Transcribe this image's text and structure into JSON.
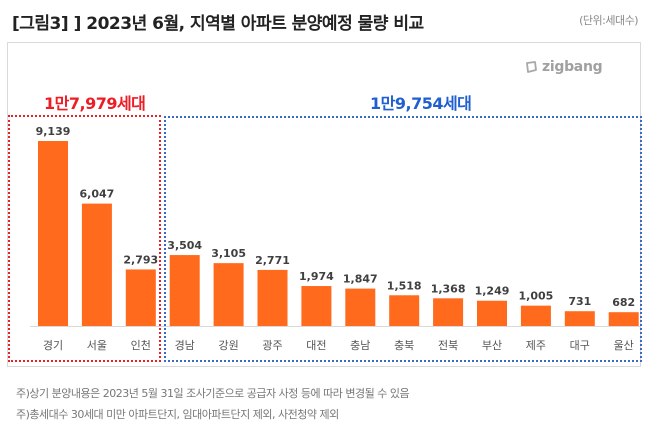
{
  "header": {
    "title": "[그림3] ] 2023년 6월, 지역별 아파트 분양예정 물량 비교",
    "unit": "(단위:세대수)"
  },
  "logo": {
    "text": "zigbang",
    "icon": "zigbang-logo-icon"
  },
  "colors": {
    "bar": "#ff6a1c",
    "group_red": "#ee1c25",
    "group_blue": "#1f5fd0",
    "axis": "#d9d9d9"
  },
  "groups": [
    {
      "total_label": "1만7,979세대",
      "color": "red"
    },
    {
      "total_label": "1만9,754세대",
      "color": "blue"
    }
  ],
  "chart_data": {
    "type": "bar",
    "title": "2023년 6월, 지역별 아파트 분양예정 물량 비교",
    "xlabel": "",
    "ylabel": "세대수",
    "ylim": [
      0,
      9139
    ],
    "grid": false,
    "categories": [
      "경기",
      "서울",
      "인천",
      "경남",
      "강원",
      "광주",
      "대전",
      "충남",
      "충북",
      "전북",
      "부산",
      "제주",
      "대구",
      "울산"
    ],
    "values": [
      9139,
      6047,
      2793,
      3504,
      3105,
      2771,
      1974,
      1847,
      1518,
      1368,
      1249,
      1005,
      731,
      682
    ],
    "value_labels": [
      "9,139",
      "6,047",
      "2,793",
      "3,504",
      "3,105",
      "2,771",
      "1,974",
      "1,847",
      "1,518",
      "1,368",
      "1,249",
      "1,005",
      "731",
      "682"
    ],
    "group_of": [
      0,
      0,
      0,
      1,
      1,
      1,
      1,
      1,
      1,
      1,
      1,
      1,
      1,
      1
    ]
  },
  "footnotes": [
    "주)상기 분양내용은  2023년 5월 31일 조사기준으로 공급자 사정 등에 따라 변경될 수 있음",
    "주)총세대수 30세대 미만 아파트단지,  임대아파트단지 제외, 사전청약 제외"
  ]
}
